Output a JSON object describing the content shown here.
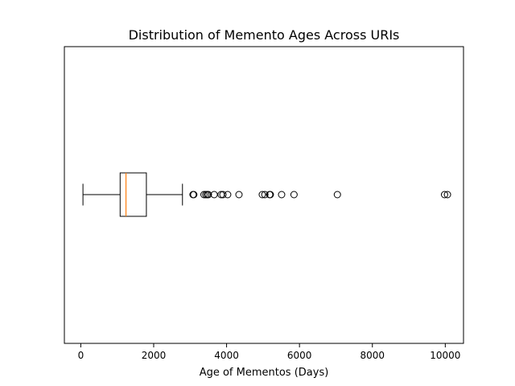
{
  "chart_data": {
    "type": "boxplot",
    "orientation": "horizontal",
    "title": "Distribution of Memento Ages Across URIs",
    "xlabel": "Age of Mementos (Days)",
    "ylabel": "",
    "xlim": [
      -450,
      10500
    ],
    "xticks": [
      0,
      2000,
      4000,
      6000,
      8000,
      10000
    ],
    "xtick_labels": [
      "0",
      "2000",
      "4000",
      "6000",
      "8000",
      "10000"
    ],
    "yticks_visible": false,
    "grid": false,
    "box": {
      "whisker_low": 60,
      "q1": 1080,
      "median": 1240,
      "q3": 1800,
      "whisker_high": 2790
    },
    "outliers": [
      3080,
      3100,
      3380,
      3430,
      3470,
      3500,
      3660,
      3850,
      3900,
      4030,
      4340,
      4980,
      5050,
      5180,
      5200,
      5510,
      5850,
      7040,
      9980,
      10060
    ],
    "colors": {
      "box": "#000000",
      "median": "#ff7f0e",
      "outlier_edge": "#000000"
    }
  }
}
